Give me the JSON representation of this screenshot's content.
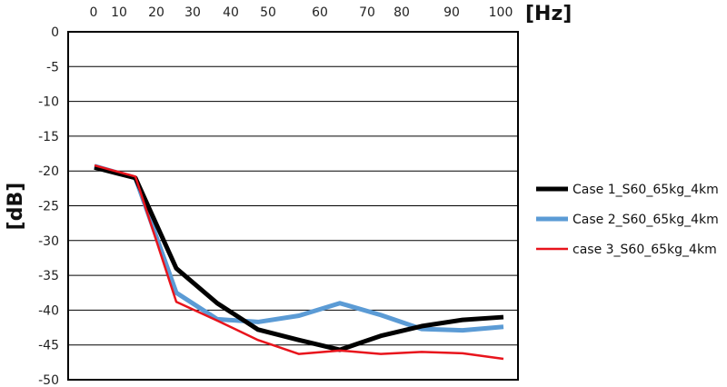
{
  "chart_data": {
    "type": "line",
    "title": "",
    "xlabel": "[Hz]",
    "ylabel": "[dB]",
    "x_tick_labels": [
      "0",
      "10",
      "20",
      "30",
      "40",
      "50",
      "60",
      "70",
      "80",
      "90",
      "100"
    ],
    "y_ticks": [
      0,
      -5,
      -10,
      -15,
      -20,
      -25,
      -30,
      -35,
      -40,
      -45,
      -50
    ],
    "ylim": [
      -50,
      0
    ],
    "grid": "horizontal",
    "legend": "right",
    "x": [
      0,
      10,
      20,
      30,
      40,
      50,
      60,
      70,
      80,
      90,
      100
    ],
    "series": [
      {
        "name": "Case 1_S60_65kg_4km",
        "color": "#000000",
        "values": [
          -19.5,
          -21,
          -34,
          -39,
          -42.8,
          -44.3,
          -45.7,
          -43.7,
          -42.3,
          -41.4,
          -41
        ]
      },
      {
        "name": "Case 2_S60_65kg_4km",
        "color": "#5b9bd5",
        "values": [
          -19.3,
          -21,
          -37.5,
          -41.3,
          -41.7,
          -40.8,
          -39,
          -40.7,
          -42.7,
          -42.9,
          -42.4
        ]
      },
      {
        "name": "case 3_S60_65kg_4km",
        "color": "#e8141c",
        "values": [
          -19.2,
          -20.8,
          -38.8,
          -41.5,
          -44.3,
          -46.3,
          -45.8,
          -46.3,
          -46,
          -46.2,
          -47
        ]
      }
    ]
  }
}
